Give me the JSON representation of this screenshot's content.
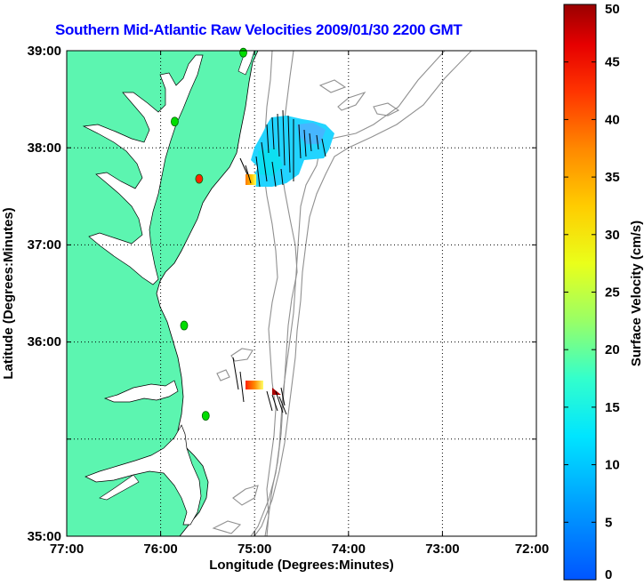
{
  "map": {
    "title": "Southern Mid-Atlantic Raw Velocities 2009/01/30 2200 GMT",
    "xlabel": "Longitude (Degrees:Minutes)",
    "ylabel": "Latitude (Degrees:Minutes)",
    "lon_ticks": [
      "77:00",
      "76:00",
      "75:00",
      "74:00",
      "73:00",
      "72:00"
    ],
    "lat_ticks": [
      "39:00",
      "38:00",
      "37:00",
      "36:00",
      "35:00"
    ],
    "land_color": "#5cf5b0",
    "bathymetry_color": "#909090",
    "grid_style": "dotted"
  },
  "colorbar": {
    "label": "Surface Velocity (cm/s)",
    "ticks": [
      "0",
      "5",
      "10",
      "15",
      "20",
      "25",
      "30",
      "35",
      "40",
      "45",
      "50"
    ],
    "range": [
      0,
      50
    ],
    "colormap": "jet"
  },
  "stations": [
    {
      "color": "#00dd00",
      "lon": -75.12,
      "lat": 38.98
    },
    {
      "color": "#00dd00",
      "lon": -75.85,
      "lat": 38.27
    },
    {
      "color": "#ff2200",
      "lon": -75.59,
      "lat": 37.68
    },
    {
      "color": "#00dd00",
      "lon": -75.75,
      "lat": 36.17
    },
    {
      "color": "#00dd00",
      "lon": -75.52,
      "lat": 35.24
    }
  ]
}
